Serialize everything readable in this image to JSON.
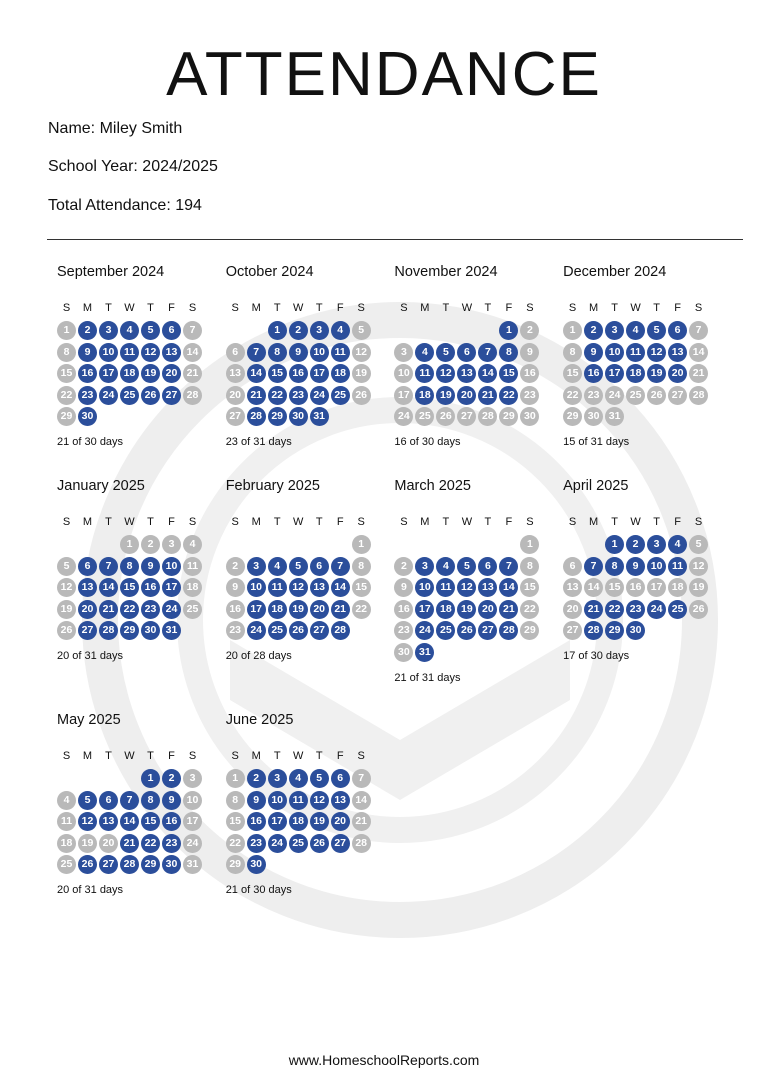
{
  "header": {
    "title": "ATTENDANCE",
    "name": "Name: Miley Smith",
    "school_year": "School Year: 2024/2025",
    "total": "Total Attendance: 194"
  },
  "weekdays": [
    "S",
    "M",
    "T",
    "W",
    "T",
    "F",
    "S"
  ],
  "months": [
    {
      "name": "September 2024",
      "days": [
        1,
        2,
        3,
        4,
        5,
        6,
        7,
        8,
        9,
        10,
        11,
        12,
        13,
        14,
        15,
        16,
        17,
        18,
        19,
        20,
        21,
        22,
        23,
        24,
        25,
        26,
        27,
        28,
        29,
        30
      ],
      "present": [
        false,
        true,
        true,
        true,
        true,
        true,
        false,
        false,
        true,
        true,
        true,
        true,
        true,
        false,
        false,
        true,
        true,
        true,
        true,
        true,
        false,
        false,
        true,
        true,
        true,
        true,
        true,
        false,
        false,
        true
      ],
      "summary": "21 of 30 days"
    },
    {
      "name": "October 2024",
      "days": [
        null,
        null,
        1,
        2,
        3,
        4,
        5,
        6,
        7,
        8,
        9,
        10,
        11,
        12,
        13,
        14,
        15,
        16,
        17,
        18,
        19,
        20,
        21,
        22,
        23,
        24,
        25,
        26,
        27,
        28,
        29,
        30,
        31
      ],
      "present": [
        null,
        null,
        true,
        true,
        true,
        true,
        false,
        false,
        true,
        true,
        true,
        true,
        true,
        false,
        false,
        true,
        true,
        true,
        true,
        true,
        false,
        false,
        true,
        true,
        true,
        true,
        true,
        false,
        false,
        true,
        true,
        true,
        true
      ],
      "summary": "23 of 31 days"
    },
    {
      "name": "November 2024",
      "days": [
        null,
        null,
        null,
        null,
        null,
        1,
        2,
        3,
        4,
        5,
        6,
        7,
        8,
        9,
        10,
        11,
        12,
        13,
        14,
        15,
        16,
        17,
        18,
        19,
        20,
        21,
        22,
        23,
        24,
        25,
        26,
        27,
        28,
        29,
        30
      ],
      "present": [
        null,
        null,
        null,
        null,
        null,
        true,
        false,
        false,
        true,
        true,
        true,
        true,
        true,
        false,
        false,
        true,
        true,
        true,
        true,
        true,
        false,
        false,
        true,
        true,
        true,
        true,
        true,
        false,
        false,
        false,
        false,
        false,
        false,
        false,
        false
      ],
      "summary": "16 of 30 days"
    },
    {
      "name": "December 2024",
      "days": [
        1,
        2,
        3,
        4,
        5,
        6,
        7,
        8,
        9,
        10,
        11,
        12,
        13,
        14,
        15,
        16,
        17,
        18,
        19,
        20,
        21,
        22,
        23,
        24,
        25,
        26,
        27,
        28,
        29,
        30,
        31
      ],
      "present": [
        false,
        true,
        true,
        true,
        true,
        true,
        false,
        false,
        true,
        true,
        true,
        true,
        true,
        false,
        false,
        true,
        true,
        true,
        true,
        true,
        false,
        false,
        false,
        false,
        false,
        false,
        false,
        false,
        false,
        false,
        false
      ],
      "summary": "15 of 31 days"
    },
    {
      "name": "January 2025",
      "days": [
        null,
        null,
        null,
        1,
        2,
        3,
        4,
        5,
        6,
        7,
        8,
        9,
        10,
        11,
        12,
        13,
        14,
        15,
        16,
        17,
        18,
        19,
        20,
        21,
        22,
        23,
        24,
        25,
        26,
        27,
        28,
        29,
        30,
        31
      ],
      "present": [
        null,
        null,
        null,
        false,
        false,
        false,
        false,
        false,
        true,
        true,
        true,
        true,
        true,
        false,
        false,
        true,
        true,
        true,
        true,
        true,
        false,
        false,
        true,
        true,
        true,
        true,
        true,
        false,
        false,
        true,
        true,
        true,
        true,
        true
      ],
      "summary": "20 of 31 days"
    },
    {
      "name": "February 2025",
      "days": [
        null,
        null,
        null,
        null,
        null,
        null,
        1,
        2,
        3,
        4,
        5,
        6,
        7,
        8,
        9,
        10,
        11,
        12,
        13,
        14,
        15,
        16,
        17,
        18,
        19,
        20,
        21,
        22,
        23,
        24,
        25,
        26,
        27,
        28
      ],
      "present": [
        null,
        null,
        null,
        null,
        null,
        null,
        false,
        false,
        true,
        true,
        true,
        true,
        true,
        false,
        false,
        true,
        true,
        true,
        true,
        true,
        false,
        false,
        true,
        true,
        true,
        true,
        true,
        false,
        false,
        true,
        true,
        true,
        true,
        true
      ],
      "summary": "20 of 28 days"
    },
    {
      "name": "March 2025",
      "days": [
        null,
        null,
        null,
        null,
        null,
        null,
        1,
        2,
        3,
        4,
        5,
        6,
        7,
        8,
        9,
        10,
        11,
        12,
        13,
        14,
        15,
        16,
        17,
        18,
        19,
        20,
        21,
        22,
        23,
        24,
        25,
        26,
        27,
        28,
        29,
        30,
        31
      ],
      "present": [
        null,
        null,
        null,
        null,
        null,
        null,
        false,
        false,
        true,
        true,
        true,
        true,
        true,
        false,
        false,
        true,
        true,
        true,
        true,
        true,
        false,
        false,
        true,
        true,
        true,
        true,
        true,
        false,
        false,
        true,
        true,
        true,
        true,
        true,
        false,
        false,
        true
      ],
      "summary": "21 of 31 days"
    },
    {
      "name": "April 2025",
      "days": [
        null,
        null,
        1,
        2,
        3,
        4,
        5,
        6,
        7,
        8,
        9,
        10,
        11,
        12,
        13,
        14,
        15,
        16,
        17,
        18,
        19,
        20,
        21,
        22,
        23,
        24,
        25,
        26,
        27,
        28,
        29,
        30
      ],
      "present": [
        null,
        null,
        true,
        true,
        true,
        true,
        false,
        false,
        true,
        true,
        true,
        true,
        true,
        false,
        false,
        false,
        false,
        false,
        false,
        false,
        false,
        false,
        true,
        true,
        true,
        true,
        true,
        false,
        false,
        true,
        true,
        true
      ],
      "summary": "17 of 30 days"
    },
    {
      "name": "May 2025",
      "days": [
        null,
        null,
        null,
        null,
        1,
        2,
        3,
        4,
        5,
        6,
        7,
        8,
        9,
        10,
        11,
        12,
        13,
        14,
        15,
        16,
        17,
        18,
        19,
        20,
        21,
        22,
        23,
        24,
        25,
        26,
        27,
        28,
        29,
        30,
        31
      ],
      "present": [
        null,
        null,
        null,
        null,
        true,
        true,
        false,
        false,
        true,
        true,
        true,
        true,
        true,
        false,
        false,
        true,
        true,
        true,
        true,
        true,
        false,
        false,
        false,
        false,
        true,
        true,
        true,
        false,
        false,
        true,
        true,
        true,
        true,
        true,
        false
      ],
      "summary": "20 of 31 days"
    },
    {
      "name": "June 2025",
      "days": [
        1,
        2,
        3,
        4,
        5,
        6,
        7,
        8,
        9,
        10,
        11,
        12,
        13,
        14,
        15,
        16,
        17,
        18,
        19,
        20,
        21,
        22,
        23,
        24,
        25,
        26,
        27,
        28,
        29,
        30
      ],
      "present": [
        false,
        true,
        true,
        true,
        true,
        true,
        false,
        false,
        true,
        true,
        true,
        true,
        true,
        false,
        false,
        true,
        true,
        true,
        true,
        true,
        false,
        false,
        true,
        true,
        true,
        true,
        true,
        false,
        false,
        true
      ],
      "summary": "21 of 30 days"
    }
  ],
  "footer": "www.HomeschoolReports.com"
}
